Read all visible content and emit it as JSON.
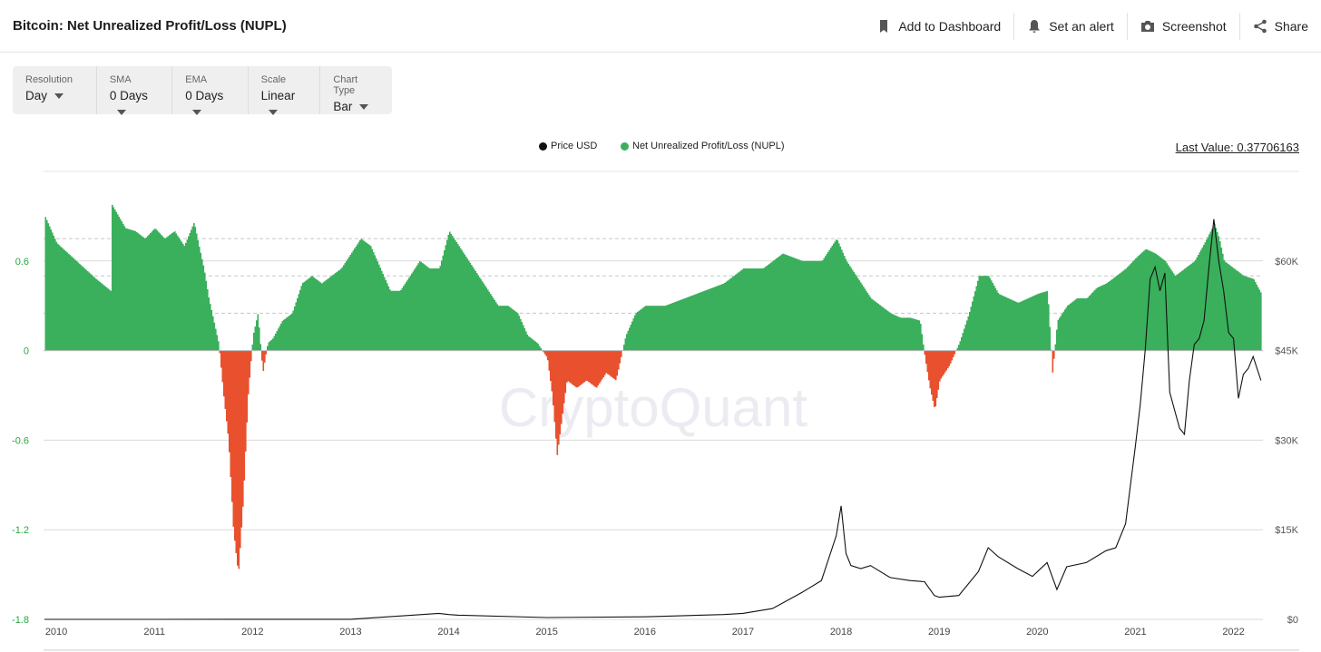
{
  "page": {
    "title": "Bitcoin: Net Unrealized Profit/Loss (NUPL)"
  },
  "actions": [
    {
      "label": "Add to Dashboard",
      "icon": "bookmark-icon"
    },
    {
      "label": "Set an alert",
      "icon": "bell-icon"
    },
    {
      "label": "Screenshot",
      "icon": "camera-icon"
    },
    {
      "label": "Share",
      "icon": "share-icon"
    }
  ],
  "toolbar": {
    "resolution": {
      "label": "Resolution",
      "value": "Day"
    },
    "sma": {
      "label": "SMA",
      "value": "0 Days"
    },
    "ema": {
      "label": "EMA",
      "value": "0 Days"
    },
    "scale": {
      "label": "Scale",
      "value": "Linear"
    },
    "chart_type": {
      "label": "Chart Type",
      "value": "Bar"
    }
  },
  "legend": {
    "price": "Price USD",
    "nupl": "Net Unrealized Profit/Loss (NUPL)",
    "last_value": "Last Value: 0.37706163"
  },
  "watermark": "CryptoQuant",
  "colors": {
    "positive": "#3aaf5c",
    "negative": "#e8502e",
    "price": "#111111",
    "grid": "#d9d9d9",
    "left_tick": "#27a744"
  },
  "chart_data": {
    "type": "bar",
    "x_ticks": [
      "2010",
      "2011",
      "2012",
      "2013",
      "2014",
      "2015",
      "2016",
      "2017",
      "2018",
      "2019",
      "2020",
      "2021",
      "2022"
    ],
    "left_ticks": [
      "0.6",
      "0",
      "-0.6",
      "-1.2",
      "-1.8"
    ],
    "right_ticks": [
      "$60K",
      "$45K",
      "$30K",
      "$15K",
      "$0"
    ],
    "ylim_left": [
      -1.8,
      1.2
    ],
    "ylim_right": [
      0,
      75000
    ],
    "xlim": [
      2009.87,
      2022.3
    ],
    "grid": true,
    "dashed_levels": [
      0.75,
      0.5,
      0.25
    ],
    "series": [
      {
        "name": "Net Unrealized Profit/Loss (NUPL)",
        "style": "bar",
        "x": [
          2009.88,
          2010.0,
          2010.2,
          2010.4,
          2010.55,
          2010.56,
          2010.7,
          2010.8,
          2010.9,
          2011.0,
          2011.1,
          2011.2,
          2011.3,
          2011.4,
          2011.45,
          2011.5,
          2011.55,
          2011.6,
          2011.65,
          2011.7,
          2011.75,
          2011.8,
          2011.85,
          2011.9,
          2011.95,
          2012.0,
          2012.05,
          2012.1,
          2012.15,
          2012.2,
          2012.3,
          2012.4,
          2012.5,
          2012.6,
          2012.7,
          2012.8,
          2012.9,
          2013.0,
          2013.1,
          2013.2,
          2013.3,
          2013.4,
          2013.5,
          2013.6,
          2013.7,
          2013.8,
          2013.9,
          2014.0,
          2014.1,
          2014.2,
          2014.3,
          2014.4,
          2014.5,
          2014.6,
          2014.7,
          2014.8,
          2014.9,
          2015.0,
          2015.05,
          2015.1,
          2015.2,
          2015.3,
          2015.4,
          2015.5,
          2015.6,
          2015.7,
          2015.8,
          2015.9,
          2016.0,
          2016.2,
          2016.4,
          2016.6,
          2016.8,
          2017.0,
          2017.2,
          2017.4,
          2017.6,
          2017.8,
          2017.95,
          2018.05,
          2018.1,
          2018.2,
          2018.3,
          2018.4,
          2018.5,
          2018.6,
          2018.7,
          2018.8,
          2018.85,
          2018.9,
          2018.95,
          2019.0,
          2019.1,
          2019.2,
          2019.3,
          2019.4,
          2019.5,
          2019.6,
          2019.7,
          2019.8,
          2019.9,
          2020.0,
          2020.1,
          2020.15,
          2020.2,
          2020.3,
          2020.4,
          2020.5,
          2020.6,
          2020.7,
          2020.8,
          2020.9,
          2021.0,
          2021.1,
          2021.2,
          2021.3,
          2021.4,
          2021.5,
          2021.6,
          2021.7,
          2021.8,
          2021.85,
          2021.9,
          2022.0,
          2022.1,
          2022.2,
          2022.28
        ],
        "values": [
          0.9,
          0.72,
          0.6,
          0.48,
          0.4,
          0.98,
          0.82,
          0.8,
          0.75,
          0.82,
          0.75,
          0.8,
          0.7,
          0.86,
          0.7,
          0.55,
          0.35,
          0.2,
          0.05,
          -0.3,
          -0.6,
          -1.2,
          -1.5,
          -1.0,
          -0.3,
          0.1,
          0.25,
          -0.15,
          0.05,
          0.08,
          0.2,
          0.25,
          0.45,
          0.5,
          0.45,
          0.5,
          0.55,
          0.65,
          0.75,
          0.7,
          0.55,
          0.4,
          0.4,
          0.5,
          0.6,
          0.55,
          0.55,
          0.8,
          0.7,
          0.6,
          0.5,
          0.4,
          0.3,
          0.3,
          0.25,
          0.1,
          0.05,
          -0.05,
          -0.3,
          -0.7,
          -0.2,
          -0.25,
          -0.2,
          -0.25,
          -0.15,
          -0.2,
          0.1,
          0.25,
          0.3,
          0.3,
          0.35,
          0.4,
          0.45,
          0.55,
          0.55,
          0.65,
          0.6,
          0.6,
          0.75,
          0.6,
          0.55,
          0.45,
          0.35,
          0.3,
          0.25,
          0.22,
          0.22,
          0.2,
          -0.05,
          -0.25,
          -0.4,
          -0.2,
          -0.1,
          0.05,
          0.25,
          0.5,
          0.5,
          0.38,
          0.35,
          0.32,
          0.35,
          0.38,
          0.4,
          -0.15,
          0.2,
          0.3,
          0.35,
          0.35,
          0.42,
          0.45,
          0.5,
          0.55,
          0.62,
          0.68,
          0.65,
          0.6,
          0.5,
          0.55,
          0.6,
          0.72,
          0.85,
          0.75,
          0.6,
          0.55,
          0.5,
          0.48,
          0.38
        ]
      },
      {
        "name": "Price USD",
        "style": "line",
        "axis": "right",
        "x": [
          2009.88,
          2011.0,
          2012.0,
          2013.0,
          2013.9,
          2014.0,
          2014.1,
          2015.0,
          2016.0,
          2016.8,
          2017.0,
          2017.3,
          2017.6,
          2017.8,
          2017.95,
          2018.0,
          2018.05,
          2018.1,
          2018.2,
          2018.3,
          2018.5,
          2018.7,
          2018.85,
          2018.95,
          2019.0,
          2019.2,
          2019.4,
          2019.5,
          2019.6,
          2019.8,
          2019.95,
          2020.1,
          2020.2,
          2020.3,
          2020.5,
          2020.7,
          2020.8,
          2020.9,
          2021.0,
          2021.05,
          2021.1,
          2021.15,
          2021.2,
          2021.25,
          2021.3,
          2021.35,
          2021.4,
          2021.45,
          2021.5,
          2021.55,
          2021.6,
          2021.65,
          2021.7,
          2021.75,
          2021.8,
          2021.85,
          2021.9,
          2021.95,
          2022.0,
          2022.05,
          2022.1,
          2022.15,
          2022.2,
          2022.28
        ],
        "values": [
          0,
          0,
          10,
          20,
          1000,
          800,
          700,
          300,
          430,
          800,
          1000,
          1800,
          4500,
          6500,
          14000,
          19000,
          11000,
          9000,
          8500,
          9000,
          7000,
          6500,
          6300,
          4000,
          3700,
          4000,
          8000,
          12000,
          10500,
          8500,
          7200,
          9500,
          5000,
          8800,
          9500,
          11500,
          12000,
          16000,
          29000,
          36000,
          45000,
          57000,
          59000,
          55000,
          58000,
          38000,
          35000,
          32000,
          31000,
          40000,
          46000,
          47000,
          50000,
          59000,
          67000,
          60000,
          55000,
          48000,
          47000,
          37000,
          41000,
          42000,
          44000,
          40000
        ]
      }
    ]
  }
}
